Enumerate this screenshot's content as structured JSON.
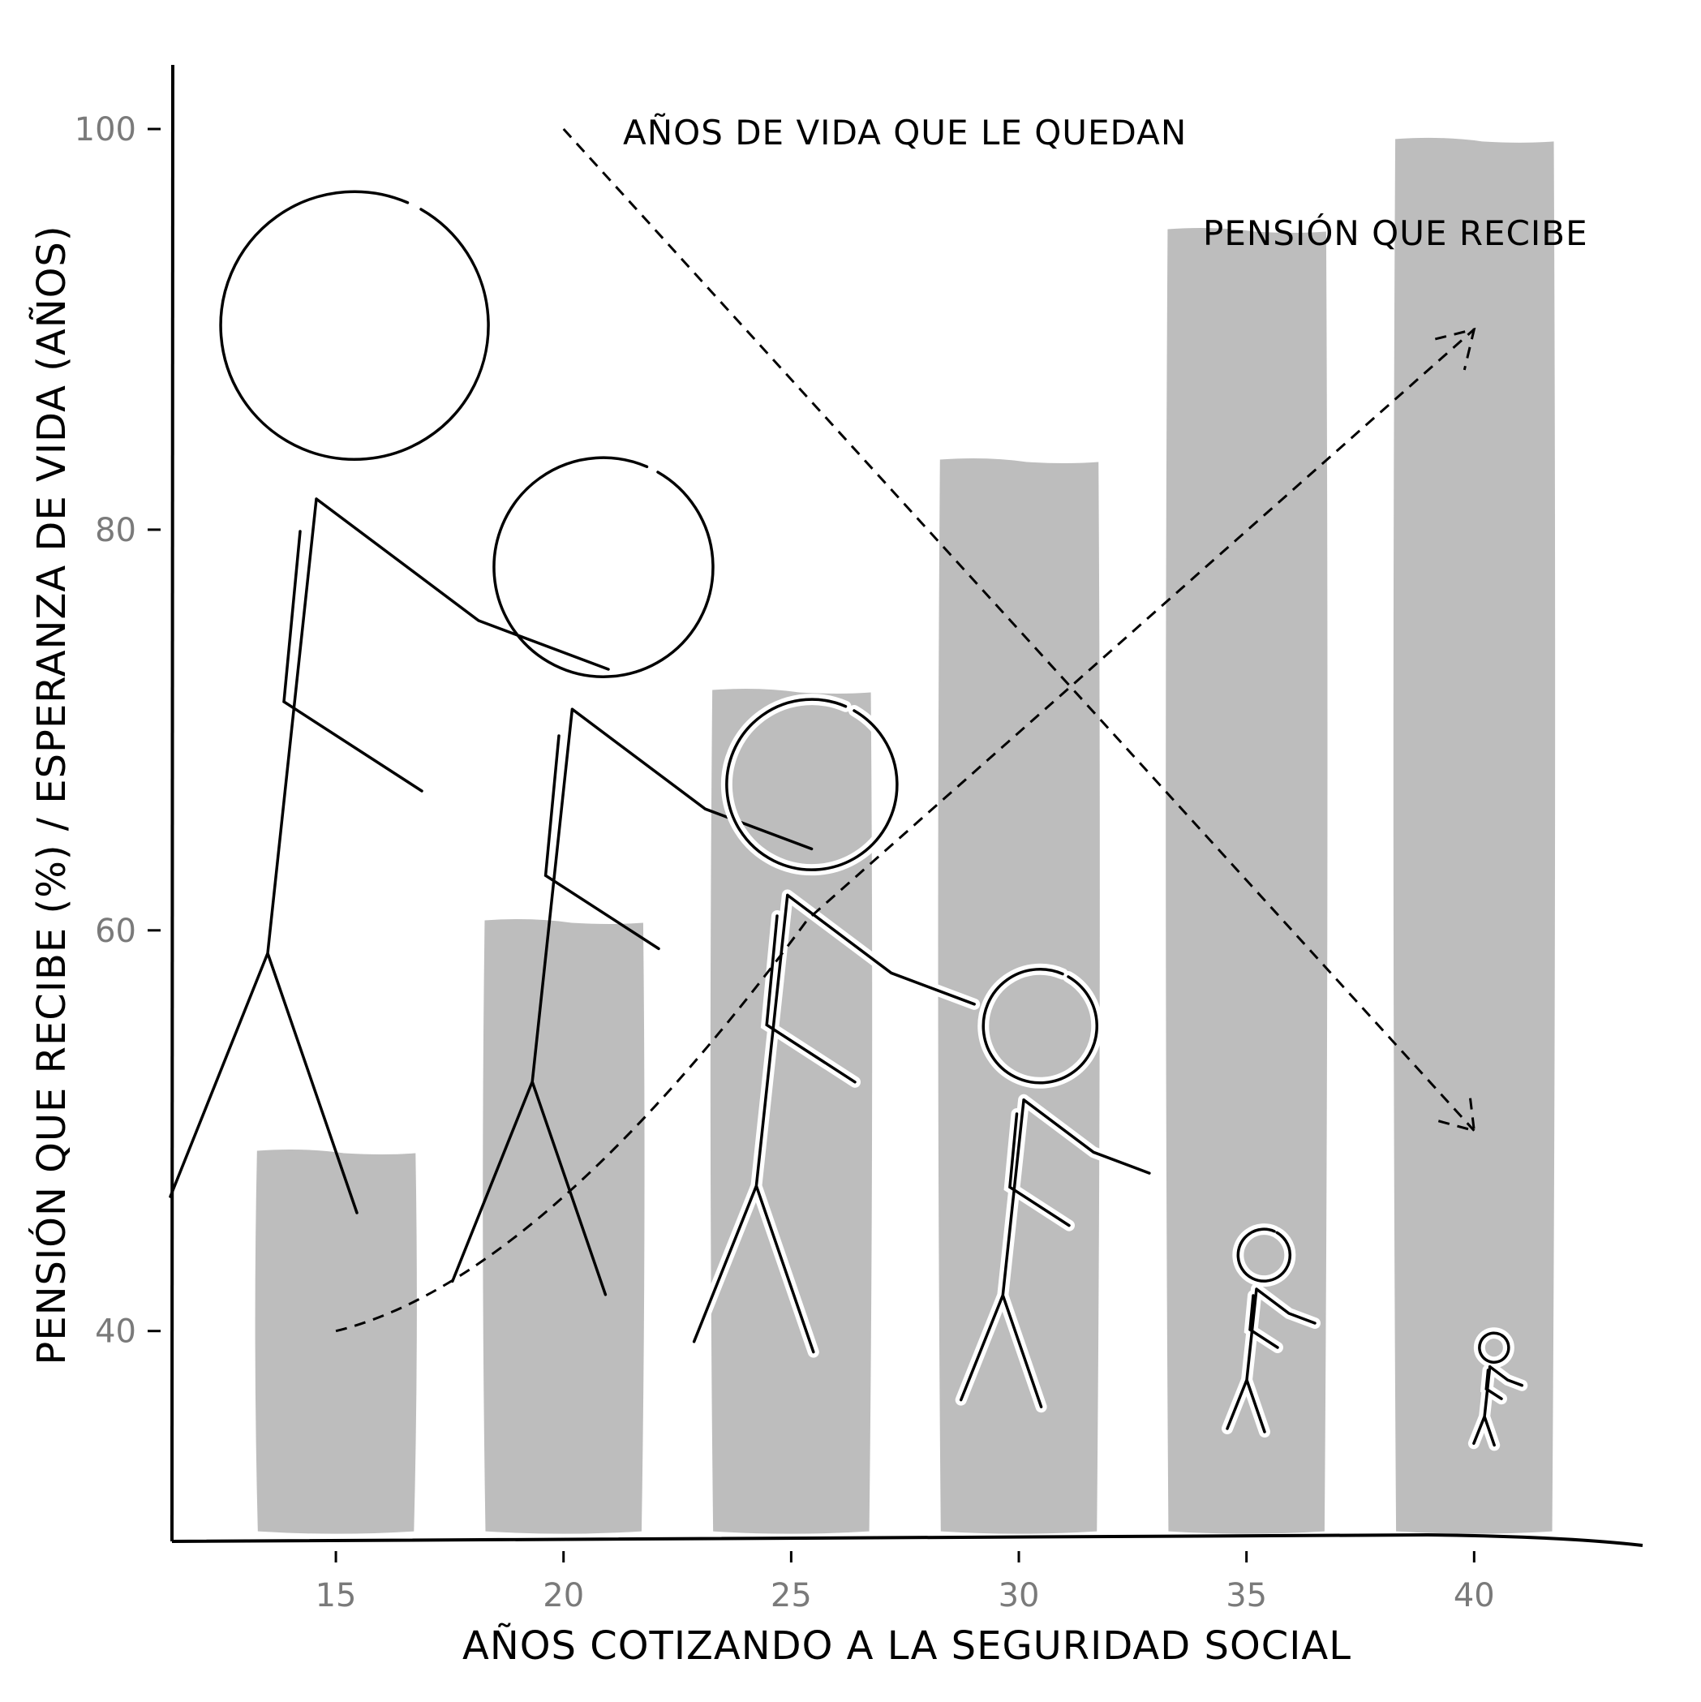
{
  "chart_data": {
    "type": "bar",
    "xlabel": "AÑOS COTIZANDO A LA SEGURIDAD SOCIAL",
    "ylabel": "PENSIÓN QUE RECIBE (%) / ESPERANZA DE VIDA (AÑOS)",
    "x_ticks": [
      "15",
      "20",
      "25",
      "30",
      "35",
      "40"
    ],
    "y_ticks": [
      "40",
      "60",
      "80",
      "100"
    ],
    "xlim": [
      11.4,
      43.7
    ],
    "ylim": [
      29.5,
      103.2
    ],
    "categories": [
      15,
      20,
      25,
      30,
      35,
      40
    ],
    "values": [
      49,
      60.5,
      72,
      83.5,
      95,
      99.5
    ],
    "grid": false,
    "annotations": [
      {
        "text": "AÑOS DE VIDA QUE LE QUEDAN",
        "x": 21.3,
        "y": 99.5,
        "arrow_from": [
          20,
          100
        ],
        "arrow_to": [
          40,
          50
        ]
      },
      {
        "text": "PENSIÓN QUE RECIBE",
        "x": 34.7,
        "y": 94.5,
        "arrow_from": [
          15,
          40
        ],
        "arrow_to": [
          40,
          90
        ]
      }
    ]
  }
}
